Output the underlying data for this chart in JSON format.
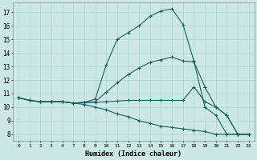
{
  "xlabel": "Humidex (Indice chaleur)",
  "background_color": "#cce8e5",
  "grid_color": "#aad4d0",
  "line_color": "#1a6060",
  "x_tick_labels": [
    "0",
    "1",
    "2",
    "3",
    "4",
    "7",
    "8",
    "9",
    "10",
    "11",
    "12",
    "13",
    "14",
    "15",
    "16",
    "17",
    "18",
    "19",
    "20",
    "21",
    "22",
    "23"
  ],
  "x_tick_positions": [
    0,
    1,
    2,
    3,
    4,
    5,
    6,
    7,
    8,
    9,
    10,
    11,
    12,
    13,
    14,
    15,
    16,
    17,
    18,
    19,
    20,
    21
  ],
  "yticks": [
    8,
    9,
    10,
    11,
    12,
    13,
    14,
    15,
    16,
    17
  ],
  "ylim": [
    7.5,
    17.7
  ],
  "xlim": [
    -0.5,
    21.5
  ],
  "line1_x": [
    0,
    1,
    2,
    3,
    4,
    5,
    6,
    7,
    8,
    9,
    10,
    11,
    12,
    13,
    14,
    15,
    16,
    17,
    18,
    19,
    20,
    21
  ],
  "line1_y": [
    10.7,
    10.5,
    10.4,
    10.4,
    10.4,
    10.3,
    10.35,
    10.6,
    13.1,
    15.0,
    15.5,
    16.0,
    16.7,
    17.1,
    17.25,
    16.1,
    13.4,
    10.0,
    9.4,
    8.0,
    8.0,
    8.0
  ],
  "line2_x": [
    0,
    1,
    2,
    3,
    4,
    5,
    6,
    7,
    8,
    9,
    10,
    11,
    12,
    13,
    14,
    15,
    16,
    17,
    18,
    19,
    20,
    21
  ],
  "line2_y": [
    10.7,
    10.5,
    10.4,
    10.4,
    10.4,
    10.3,
    10.35,
    10.4,
    11.1,
    11.8,
    12.4,
    12.9,
    13.3,
    13.5,
    13.7,
    13.4,
    13.35,
    11.5,
    10.0,
    9.4,
    8.0,
    8.0
  ],
  "line3_x": [
    0,
    1,
    2,
    3,
    4,
    5,
    6,
    7,
    8,
    9,
    10,
    11,
    12,
    13,
    14,
    15,
    16,
    17,
    18,
    19,
    20,
    21
  ],
  "line3_y": [
    10.7,
    10.5,
    10.4,
    10.4,
    10.4,
    10.3,
    10.35,
    10.35,
    10.4,
    10.45,
    10.5,
    10.5,
    10.5,
    10.5,
    10.5,
    10.5,
    11.5,
    10.4,
    10.0,
    9.4,
    8.0,
    8.0
  ],
  "line4_x": [
    0,
    1,
    2,
    3,
    4,
    5,
    6,
    7,
    8,
    9,
    10,
    11,
    12,
    13,
    14,
    15,
    16,
    17,
    18,
    19,
    20,
    21
  ],
  "line4_y": [
    10.7,
    10.5,
    10.4,
    10.4,
    10.4,
    10.3,
    10.2,
    10.0,
    9.8,
    9.5,
    9.3,
    9.0,
    8.8,
    8.6,
    8.5,
    8.4,
    8.3,
    8.2,
    8.0,
    8.0,
    8.0,
    8.0
  ]
}
